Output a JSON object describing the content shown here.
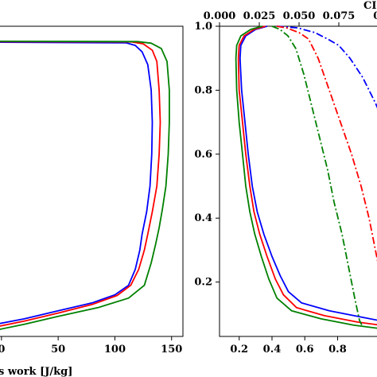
{
  "chart_data": [
    {
      "type": "line",
      "title": "",
      "xlabel": "s work [J/kg]",
      "ylabel": "",
      "xlim": [
        -2,
        160
      ],
      "ylim": [
        0.03,
        1.0
      ],
      "x_ticks": [
        {
          "value": 0,
          "label": "0"
        },
        {
          "value": 50,
          "label": "50"
        },
        {
          "value": 100,
          "label": "100"
        },
        {
          "value": 150,
          "label": "150"
        }
      ],
      "y_ticks": [],
      "grid": false,
      "legend": "none",
      "series": [
        {
          "color": "#0000ff",
          "points": [
            [
              -2,
              0.95
            ],
            [
              110,
              0.948
            ],
            [
              118,
              0.94
            ],
            [
              124,
              0.92
            ],
            [
              129,
              0.88
            ],
            [
              132,
              0.8
            ],
            [
              133,
              0.7
            ],
            [
              132.5,
              0.6
            ],
            [
              131,
              0.5
            ],
            [
              128,
              0.42
            ],
            [
              124,
              0.35
            ],
            [
              122,
              0.3
            ],
            [
              118,
              0.24
            ],
            [
              112,
              0.19
            ],
            [
              100,
              0.16
            ],
            [
              80,
              0.135
            ],
            [
              50,
              0.11
            ],
            [
              20,
              0.085
            ],
            [
              -2,
              0.07
            ]
          ]
        },
        {
          "color": "#ff0000",
          "points": [
            [
              -2,
              0.952
            ],
            [
              115,
              0.951
            ],
            [
              125,
              0.945
            ],
            [
              133,
              0.925
            ],
            [
              137,
              0.89
            ],
            [
              139,
              0.8
            ],
            [
              140,
              0.7
            ],
            [
              139,
              0.6
            ],
            [
              137,
              0.5
            ],
            [
              133,
              0.42
            ],
            [
              129,
              0.35
            ],
            [
              126,
              0.3
            ],
            [
              121,
              0.24
            ],
            [
              114,
              0.19
            ],
            [
              102,
              0.158
            ],
            [
              80,
              0.13
            ],
            [
              50,
              0.103
            ],
            [
              20,
              0.078
            ],
            [
              -2,
              0.062
            ]
          ]
        },
        {
          "color": "#008000",
          "points": [
            [
              -2,
              0.953
            ],
            [
              120,
              0.952
            ],
            [
              132,
              0.947
            ],
            [
              141,
              0.93
            ],
            [
              146,
              0.89
            ],
            [
              148,
              0.8
            ],
            [
              148,
              0.7
            ],
            [
              147,
              0.6
            ],
            [
              145,
              0.5
            ],
            [
              142,
              0.43
            ],
            [
              139,
              0.37
            ],
            [
              136,
              0.32
            ],
            [
              132,
              0.26
            ],
            [
              126,
              0.19
            ],
            [
              112,
              0.15
            ],
            [
              85,
              0.12
            ],
            [
              50,
              0.093
            ],
            [
              20,
              0.068
            ],
            [
              -2,
              0.052
            ]
          ]
        }
      ]
    },
    {
      "type": "line",
      "title": "",
      "xlabel": "",
      "ylabel": "",
      "xlim": [
        0.08,
        1.05
      ],
      "ylim": [
        0.03,
        1.0
      ],
      "x_ticks": [
        {
          "value": 0.2,
          "label": "0.2"
        },
        {
          "value": 0.4,
          "label": "0.4"
        },
        {
          "value": 0.6,
          "label": "0.6"
        },
        {
          "value": 0.8,
          "label": "0.8"
        }
      ],
      "y_ticks": [
        {
          "value": 0.2,
          "label": "0.2"
        },
        {
          "value": 0.4,
          "label": "0.4"
        },
        {
          "value": 0.6,
          "label": "0.6"
        },
        {
          "value": 0.8,
          "label": "0.8"
        },
        {
          "value": 1.0,
          "label": "1.0"
        }
      ],
      "secondary_x": {
        "label": "CI",
        "xlim": [
          0.0,
          0.1
        ],
        "ticks": [
          {
            "value": 0.0,
            "label": "0.000"
          },
          {
            "value": 0.025,
            "label": "0.025"
          },
          {
            "value": 0.05,
            "label": "0.050"
          },
          {
            "value": 0.075,
            "label": "0.075"
          },
          {
            "value": 0.1,
            "label": "0."
          }
        ]
      },
      "grid": false,
      "legend": "none",
      "series": [
        {
          "color": "#0000ff",
          "dash": "solid",
          "points": [
            [
              0.37,
              1.0
            ],
            [
              0.3,
              0.99
            ],
            [
              0.24,
              0.97
            ],
            [
              0.21,
              0.94
            ],
            [
              0.205,
              0.9
            ],
            [
              0.215,
              0.8
            ],
            [
              0.235,
              0.7
            ],
            [
              0.255,
              0.6
            ],
            [
              0.28,
              0.5
            ],
            [
              0.31,
              0.42
            ],
            [
              0.35,
              0.35
            ],
            [
              0.4,
              0.28
            ],
            [
              0.45,
              0.22
            ],
            [
              0.5,
              0.17
            ],
            [
              0.58,
              0.135
            ],
            [
              0.75,
              0.11
            ],
            [
              0.95,
              0.09
            ],
            [
              1.05,
              0.08
            ]
          ]
        },
        {
          "color": "#ff0000",
          "dash": "solid",
          "points": [
            [
              0.36,
              1.0
            ],
            [
              0.29,
              0.99
            ],
            [
              0.23,
              0.97
            ],
            [
              0.2,
              0.94
            ],
            [
              0.195,
              0.9
            ],
            [
              0.2,
              0.8
            ],
            [
              0.22,
              0.7
            ],
            [
              0.24,
              0.6
            ],
            [
              0.265,
              0.5
            ],
            [
              0.29,
              0.42
            ],
            [
              0.325,
              0.35
            ],
            [
              0.37,
              0.28
            ],
            [
              0.42,
              0.21
            ],
            [
              0.47,
              0.16
            ],
            [
              0.55,
              0.12
            ],
            [
              0.72,
              0.095
            ],
            [
              0.92,
              0.075
            ],
            [
              1.05,
              0.066
            ]
          ]
        },
        {
          "color": "#008000",
          "dash": "solid",
          "points": [
            [
              0.34,
              1.0
            ],
            [
              0.27,
              0.99
            ],
            [
              0.21,
              0.97
            ],
            [
              0.185,
              0.94
            ],
            [
              0.18,
              0.9
            ],
            [
              0.185,
              0.8
            ],
            [
              0.2,
              0.7
            ],
            [
              0.22,
              0.6
            ],
            [
              0.24,
              0.5
            ],
            [
              0.265,
              0.42
            ],
            [
              0.295,
              0.35
            ],
            [
              0.335,
              0.28
            ],
            [
              0.38,
              0.21
            ],
            [
              0.43,
              0.15
            ],
            [
              0.52,
              0.11
            ],
            [
              0.7,
              0.085
            ],
            [
              0.9,
              0.065
            ],
            [
              1.05,
              0.055
            ]
          ]
        },
        {
          "color": "#0000ff",
          "dash": "dashdot",
          "points": [
            [
              0.036,
              1.0
            ],
            [
              0.049,
              0.995
            ],
            [
              0.06,
              0.98
            ],
            [
              0.068,
              0.96
            ],
            [
              0.075,
              0.94
            ],
            [
              0.082,
              0.9
            ],
            [
              0.09,
              0.84
            ],
            [
              0.098,
              0.76
            ],
            [
              0.105,
              0.68
            ]
          ]
        },
        {
          "color": "#ff0000",
          "dash": "dashdot",
          "points": [
            [
              0.036,
              1.0
            ],
            [
              0.042,
              0.995
            ],
            [
              0.05,
              0.98
            ],
            [
              0.056,
              0.96
            ],
            [
              0.062,
              0.9
            ],
            [
              0.069,
              0.8
            ],
            [
              0.076,
              0.7
            ],
            [
              0.083,
              0.6
            ],
            [
              0.089,
              0.5
            ],
            [
              0.094,
              0.4
            ],
            [
              0.098,
              0.3
            ],
            [
              0.102,
              0.2
            ],
            [
              0.105,
              0.15
            ]
          ]
        },
        {
          "color": "#008000",
          "dash": "dashdot",
          "points": [
            [
              0.033,
              1.0
            ],
            [
              0.038,
              0.99
            ],
            [
              0.043,
              0.97
            ],
            [
              0.048,
              0.93
            ],
            [
              0.053,
              0.85
            ],
            [
              0.058,
              0.75
            ],
            [
              0.063,
              0.65
            ],
            [
              0.068,
              0.55
            ],
            [
              0.072,
              0.45
            ],
            [
              0.077,
              0.35
            ],
            [
              0.081,
              0.25
            ],
            [
              0.085,
              0.15
            ],
            [
              0.088,
              0.08
            ],
            [
              0.09,
              0.06
            ]
          ]
        }
      ]
    }
  ]
}
